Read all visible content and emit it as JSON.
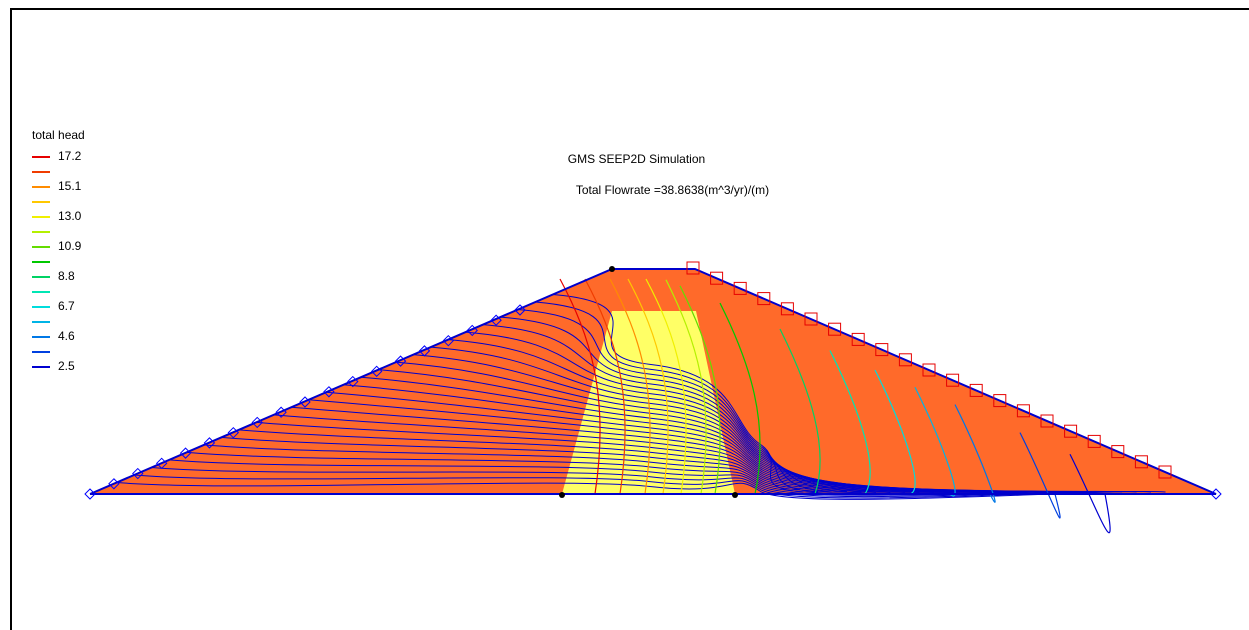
{
  "title": "GMS SEEP2D Simulation",
  "flowrate_text": "Total Flowrate =38.8638(m^3/yr)/(m)",
  "legend": {
    "title": "total head",
    "entries": [
      {
        "label": "17.2",
        "color": "#e60000"
      },
      {
        "label": "",
        "color": "#f03c00"
      },
      {
        "label": "15.1",
        "color": "#ff8c00"
      },
      {
        "label": "",
        "color": "#ffc800"
      },
      {
        "label": "13.0",
        "color": "#f0f000"
      },
      {
        "label": "",
        "color": "#b4f000"
      },
      {
        "label": "10.9",
        "color": "#64dc00"
      },
      {
        "label": "",
        "color": "#00c800"
      },
      {
        "label": "8.8",
        "color": "#00d264"
      },
      {
        "label": "",
        "color": "#00e6b4"
      },
      {
        "label": "6.7",
        "color": "#00dcdc"
      },
      {
        "label": "",
        "color": "#00b4e6"
      },
      {
        "label": "4.6",
        "color": "#0078e6"
      },
      {
        "label": "",
        "color": "#0040e0"
      },
      {
        "label": "2.5",
        "color": "#0000d0"
      }
    ]
  },
  "colors": {
    "shell": "#ff6a2a",
    "core": "#ffff66",
    "boundary": "#0000cc",
    "flow_lines": "#0000cc",
    "seepage_markers": "#e60000",
    "head_markers": "#0000ff"
  }
}
